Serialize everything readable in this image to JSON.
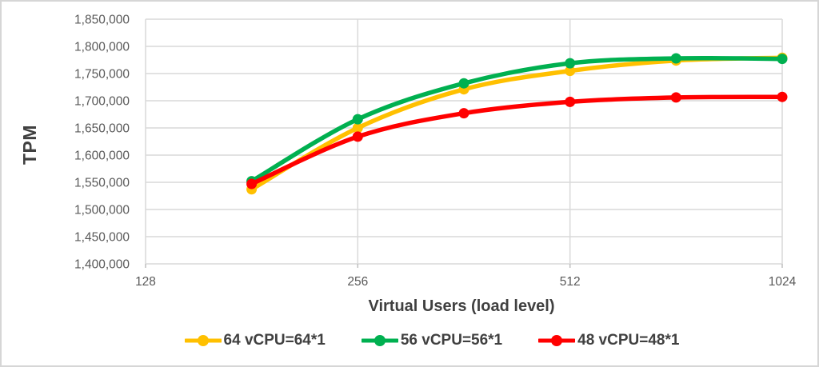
{
  "chart_data": {
    "type": "line",
    "title": "",
    "xlabel": "Virtual Users (load level)",
    "ylabel": "TPM",
    "x_scale": "log2",
    "xlim": [
      128,
      1024
    ],
    "ylim": [
      1400000,
      1850000
    ],
    "x_ticks": [
      128,
      256,
      512,
      1024
    ],
    "y_ticks": [
      1400000,
      1450000,
      1500000,
      1550000,
      1600000,
      1650000,
      1700000,
      1750000,
      1800000,
      1850000
    ],
    "grid": true,
    "line_style": "smooth",
    "legend_position": "bottom",
    "x": [
      181,
      256,
      362,
      512,
      724,
      1024
    ],
    "series": [
      {
        "name": "64 vCPU=64*1",
        "color": "#FFC000",
        "values": [
          1537000,
          1650000,
          1721000,
          1755000,
          1774000,
          1779000
        ]
      },
      {
        "name": "56 vCPU=56*1",
        "color": "#00B050",
        "values": [
          1552000,
          1666000,
          1732000,
          1769000,
          1778000,
          1777000
        ]
      },
      {
        "name": "48 vCPU=48*1",
        "color": "#FF0000",
        "values": [
          1547000,
          1634000,
          1677000,
          1698000,
          1706000,
          1707000
        ]
      }
    ]
  },
  "colors": {
    "grid": "#D9D9D9",
    "tick_mark": "#BFBFBF",
    "tick_text": "#595959",
    "title_text": "#404040",
    "frame": "#D6D6D6",
    "background": "#FFFFFF"
  }
}
